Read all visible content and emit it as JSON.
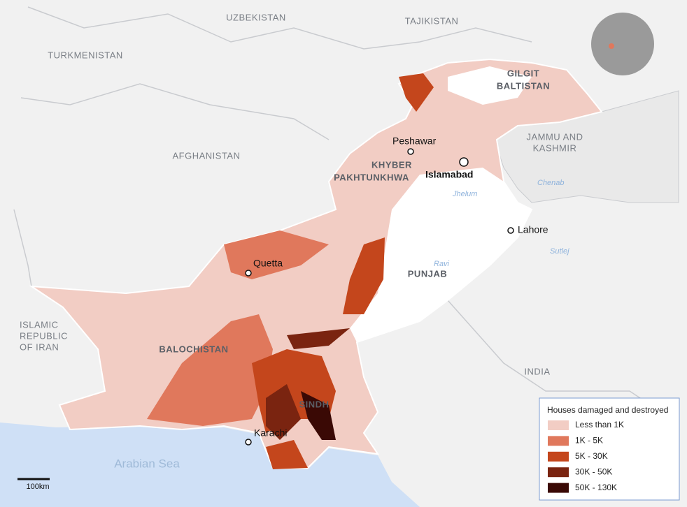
{
  "countries": {
    "uzbekistan": "UZBEKISTAN",
    "tajikistan": "TAJIKISTAN",
    "turkmenistan": "TURKMENISTAN",
    "afghanistan": "AFGHANISTAN",
    "iran": [
      "ISLAMIC",
      "REPUBLIC",
      "OF IRAN"
    ],
    "india": "INDIA"
  },
  "regions": {
    "gilgit": [
      "GILGIT",
      "BALTISTAN"
    ],
    "kashmir": [
      "JAMMU AND",
      "KASHMIR"
    ],
    "khyber": [
      "KHYBER",
      "PAKHTUNKHWA"
    ],
    "punjab": "PUNJAB",
    "balochistan": "BALOCHISTAN",
    "sindh": "SINDH"
  },
  "cities": {
    "peshawar": "Peshawar",
    "islamabad": "Islamabad",
    "lahore": "Lahore",
    "quetta": "Quetta",
    "karachi": "Karachi"
  },
  "water": {
    "sea": "Arabian Sea",
    "jhelum": "Jhelum",
    "ravi": "Ravi",
    "sutlej": "Sutlej",
    "chenab": "Chenab"
  },
  "scale_bar": "100km",
  "legend": {
    "title": "Houses damaged and destroyed",
    "items": [
      {
        "label": "Less than 1K",
        "color": "#f2cdc4"
      },
      {
        "label": "1K - 5K",
        "color": "#e0785c"
      },
      {
        "label": "5K - 30K",
        "color": "#c4461c"
      },
      {
        "label": "30K - 50K",
        "color": "#7a2410"
      },
      {
        "label": "50K - 130K",
        "color": "#3a0905"
      }
    ]
  }
}
